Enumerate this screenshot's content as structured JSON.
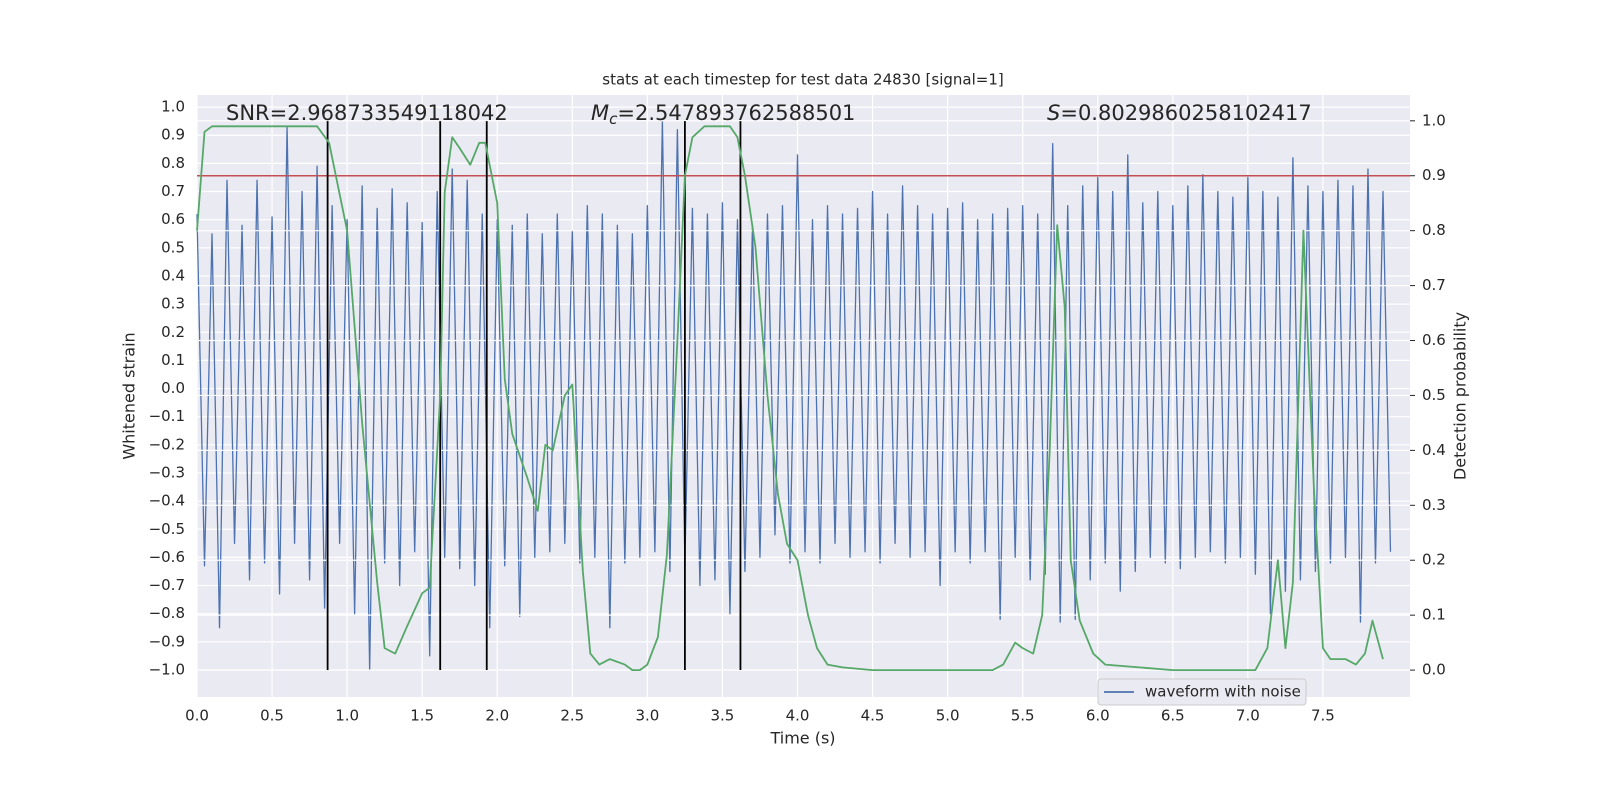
{
  "chart_data": {
    "type": "line",
    "title": "stats at each timestep for test data 24830 [signal=1]",
    "xlabel": "Time (s)",
    "ylabel": "Whitened strain",
    "y2label": "Detection probability",
    "annotations": [
      {
        "parts": [
          {
            "text": "SNR=2.968733549118042"
          }
        ]
      },
      {
        "parts": [
          {
            "text": "M",
            "italic": true
          },
          {
            "text": "c",
            "italic": true,
            "sub": true
          },
          {
            "text": "=2.547893762588501"
          }
        ]
      },
      {
        "parts": [
          {
            "text": "S",
            "italic": true
          },
          {
            "text": "=0.8029860258102417"
          }
        ]
      }
    ],
    "xlim": [
      0,
      8.08
    ],
    "ylim": [
      -1.096,
      1.043
    ],
    "y2lim": [
      -0.049,
      1.047
    ],
    "xticks": [
      {
        "value": 0,
        "label": "0.0"
      },
      {
        "value": 0.5,
        "label": "0.5"
      },
      {
        "value": 1,
        "label": "1.0"
      },
      {
        "value": 1.5,
        "label": "1.5"
      },
      {
        "value": 2,
        "label": "2.0"
      },
      {
        "value": 2.5,
        "label": "2.5"
      },
      {
        "value": 3,
        "label": "3.0"
      },
      {
        "value": 3.5,
        "label": "3.5"
      },
      {
        "value": 4,
        "label": "4.0"
      },
      {
        "value": 4.5,
        "label": "4.5"
      },
      {
        "value": 5,
        "label": "5.0"
      },
      {
        "value": 5.5,
        "label": "5.5"
      },
      {
        "value": 6,
        "label": "6.0"
      },
      {
        "value": 6.5,
        "label": "6.5"
      },
      {
        "value": 7,
        "label": "7.0"
      },
      {
        "value": 7.5,
        "label": "7.5"
      }
    ],
    "yticks": [
      {
        "value": -1,
        "label": "−1.0"
      },
      {
        "value": -0.9,
        "label": "−0.9"
      },
      {
        "value": -0.8,
        "label": "−0.8"
      },
      {
        "value": -0.7,
        "label": "−0.7"
      },
      {
        "value": -0.6,
        "label": "−0.6"
      },
      {
        "value": -0.5,
        "label": "−0.5"
      },
      {
        "value": -0.4,
        "label": "−0.4"
      },
      {
        "value": -0.3,
        "label": "−0.3"
      },
      {
        "value": -0.2,
        "label": "−0.2"
      },
      {
        "value": -0.1,
        "label": "−0.1"
      },
      {
        "value": 0,
        "label": "0.0"
      },
      {
        "value": 0.1,
        "label": "0.1"
      },
      {
        "value": 0.2,
        "label": "0.2"
      },
      {
        "value": 0.3,
        "label": "0.3"
      },
      {
        "value": 0.4,
        "label": "0.4"
      },
      {
        "value": 0.5,
        "label": "0.5"
      },
      {
        "value": 0.6,
        "label": "0.6"
      },
      {
        "value": 0.7,
        "label": "0.7"
      },
      {
        "value": 0.8,
        "label": "0.8"
      },
      {
        "value": 0.9,
        "label": "0.9"
      },
      {
        "value": 1,
        "label": "1.0"
      }
    ],
    "y2ticks": [
      {
        "value": 0,
        "label": "0.0"
      },
      {
        "value": 0.1,
        "label": "0.1"
      },
      {
        "value": 0.2,
        "label": "0.2"
      },
      {
        "value": 0.3,
        "label": "0.3"
      },
      {
        "value": 0.4,
        "label": "0.4"
      },
      {
        "value": 0.5,
        "label": "0.5"
      },
      {
        "value": 0.6,
        "label": "0.6"
      },
      {
        "value": 0.7,
        "label": "0.7"
      },
      {
        "value": 0.8,
        "label": "0.8"
      },
      {
        "value": 0.9,
        "label": "0.9"
      },
      {
        "value": 1,
        "label": "1.0"
      }
    ],
    "grid": true,
    "legend": "lower right",
    "series": [
      {
        "name": "waveform with noise",
        "color": "#4c72b0",
        "x": [
          0,
          0.05,
          0.1,
          0.15,
          0.2,
          0.25,
          0.3,
          0.35,
          0.4,
          0.45,
          0.5,
          0.55,
          0.6,
          0.65,
          0.7,
          0.75,
          0.8,
          0.85,
          0.9,
          0.95,
          1,
          1.05,
          1.1,
          1.15,
          1.2,
          1.25,
          1.3,
          1.35,
          1.4,
          1.45,
          1.5,
          1.55,
          1.6,
          1.65,
          1.7,
          1.75,
          1.8,
          1.85,
          1.9,
          1.95,
          2,
          2.05,
          2.1,
          2.15,
          2.2,
          2.25,
          2.3,
          2.35,
          2.4,
          2.45,
          2.5,
          2.55,
          2.6,
          2.65,
          2.7,
          2.75,
          2.8,
          2.85,
          2.9,
          2.95,
          3,
          3.05,
          3.1,
          3.15,
          3.2,
          3.25,
          3.3,
          3.35,
          3.4,
          3.45,
          3.5,
          3.55,
          3.6,
          3.65,
          3.7,
          3.75,
          3.8,
          3.85,
          3.9,
          3.95,
          4,
          4.05,
          4.1,
          4.15,
          4.2,
          4.25,
          4.3,
          4.35,
          4.4,
          4.45,
          4.5,
          4.55,
          4.6,
          4.65,
          4.7,
          4.75,
          4.8,
          4.85,
          4.9,
          4.95,
          5,
          5.05,
          5.1,
          5.15,
          5.2,
          5.25,
          5.3,
          5.35,
          5.4,
          5.45,
          5.5,
          5.55,
          5.6,
          5.65,
          5.7,
          5.75,
          5.8,
          5.85,
          5.9,
          5.95,
          6,
          6.05,
          6.1,
          6.15,
          6.2,
          6.25,
          6.3,
          6.35,
          6.4,
          6.45,
          6.5,
          6.55,
          6.6,
          6.65,
          6.7,
          6.75,
          6.8,
          6.85,
          6.9,
          6.95,
          7,
          7.05,
          7.1,
          7.15,
          7.2,
          7.25,
          7.3,
          7.35,
          7.4,
          7.45,
          7.5,
          7.55,
          7.6,
          7.65,
          7.7,
          7.75,
          7.8,
          7.85,
          7.9,
          7.95
        ],
        "values": [
          0.62,
          -0.63,
          0.55,
          -0.85,
          0.74,
          -0.55,
          0.58,
          -0.68,
          0.74,
          -0.62,
          0.61,
          -0.73,
          0.93,
          -0.55,
          0.7,
          -0.68,
          0.79,
          -0.78,
          0.65,
          -0.55,
          0.6,
          -0.8,
          0.72,
          -1.0,
          0.64,
          -0.62,
          0.71,
          -0.7,
          0.66,
          -0.58,
          0.59,
          -0.95,
          0.7,
          -0.6,
          0.78,
          -0.64,
          0.74,
          -0.7,
          0.62,
          -0.85,
          0.6,
          -0.63,
          0.58,
          -0.81,
          0.62,
          -0.6,
          0.55,
          -0.58,
          0.62,
          -0.55,
          0.56,
          -0.62,
          0.65,
          -0.6,
          0.62,
          -0.85,
          0.58,
          -0.62,
          0.55,
          -0.6,
          0.65,
          -0.58,
          0.95,
          -0.65,
          0.92,
          -0.62,
          0.64,
          -0.7,
          0.62,
          -0.68,
          0.66,
          -0.8,
          0.6,
          -0.65,
          0.58,
          -0.6,
          0.62,
          -0.52,
          0.65,
          -0.62,
          0.83,
          -0.58,
          0.6,
          -0.62,
          0.65,
          -0.55,
          0.62,
          -0.6,
          0.64,
          -0.58,
          0.7,
          -0.62,
          0.62,
          -0.55,
          0.72,
          -0.6,
          0.65,
          -0.58,
          0.62,
          -0.7,
          0.64,
          -0.58,
          0.66,
          -0.62,
          0.6,
          -0.58,
          0.62,
          -0.82,
          0.64,
          -0.6,
          0.65,
          -0.68,
          0.62,
          -0.66,
          0.87,
          -0.83,
          0.65,
          -0.82,
          0.72,
          -0.68,
          0.75,
          -0.62,
          0.7,
          -0.72,
          0.83,
          -0.65,
          0.66,
          -0.6,
          0.7,
          -0.62,
          0.65,
          -0.64,
          0.72,
          -0.6,
          0.76,
          -0.58,
          0.7,
          -0.62,
          0.68,
          -0.6,
          0.75,
          -0.66,
          0.7,
          -0.8,
          0.68,
          -0.72,
          0.82,
          -0.68,
          0.72,
          -0.65,
          0.7,
          -0.62,
          0.74,
          -0.6,
          0.72,
          -0.83,
          0.78,
          -0.62,
          0.7,
          -0.58
        ]
      },
      {
        "color": "#55a868",
        "axis": "y2",
        "x": [
          0,
          0.05,
          0.1,
          0.8,
          0.88,
          1.0,
          1.1,
          1.2,
          1.25,
          1.32,
          1.4,
          1.5,
          1.55,
          1.62,
          1.65,
          1.7,
          1.75,
          1.82,
          1.88,
          1.92,
          2.0,
          2.05,
          2.1,
          2.2,
          2.27,
          2.32,
          2.37,
          2.45,
          2.5,
          2.57,
          2.62,
          2.68,
          2.75,
          2.85,
          2.9,
          2.95,
          3.0,
          3.07,
          3.13,
          3.2,
          3.25,
          3.3,
          3.38,
          3.45,
          3.55,
          3.6,
          3.65,
          3.72,
          3.8,
          3.87,
          3.93,
          4.0,
          4.07,
          4.13,
          4.2,
          4.3,
          4.5,
          5.0,
          5.3,
          5.37,
          5.45,
          5.5,
          5.57,
          5.63,
          5.68,
          5.73,
          5.78,
          5.82,
          5.88,
          5.97,
          6.05,
          6.5,
          7.05,
          7.13,
          7.2,
          7.25,
          7.3,
          7.37,
          7.44,
          7.5,
          7.55,
          7.65,
          7.72,
          7.78,
          7.83,
          7.9
        ],
        "values": [
          0.8,
          0.98,
          0.99,
          0.99,
          0.96,
          0.8,
          0.45,
          0.16,
          0.04,
          0.03,
          0.08,
          0.14,
          0.15,
          0.5,
          0.87,
          0.97,
          0.95,
          0.92,
          0.96,
          0.96,
          0.85,
          0.53,
          0.43,
          0.35,
          0.29,
          0.41,
          0.4,
          0.5,
          0.52,
          0.18,
          0.03,
          0.01,
          0.02,
          0.01,
          0.0,
          0.0,
          0.01,
          0.06,
          0.21,
          0.6,
          0.9,
          0.97,
          0.99,
          0.99,
          0.99,
          0.97,
          0.9,
          0.77,
          0.5,
          0.32,
          0.23,
          0.2,
          0.1,
          0.04,
          0.01,
          0.005,
          0.0,
          0.0,
          0.0,
          0.01,
          0.05,
          0.04,
          0.03,
          0.1,
          0.4,
          0.81,
          0.66,
          0.2,
          0.09,
          0.03,
          0.01,
          0.0,
          0.0,
          0.04,
          0.2,
          0.04,
          0.16,
          0.8,
          0.33,
          0.04,
          0.02,
          0.02,
          0.01,
          0.03,
          0.09,
          0.02
        ]
      }
    ],
    "hline": {
      "value": 0.9,
      "axis": "y2",
      "color": "#c44e52"
    },
    "vlines": {
      "x": [
        0.87,
        1.62,
        1.93,
        3.25,
        3.62
      ],
      "range": [
        -1.0,
        0.95
      ],
      "color": "#000000"
    }
  }
}
